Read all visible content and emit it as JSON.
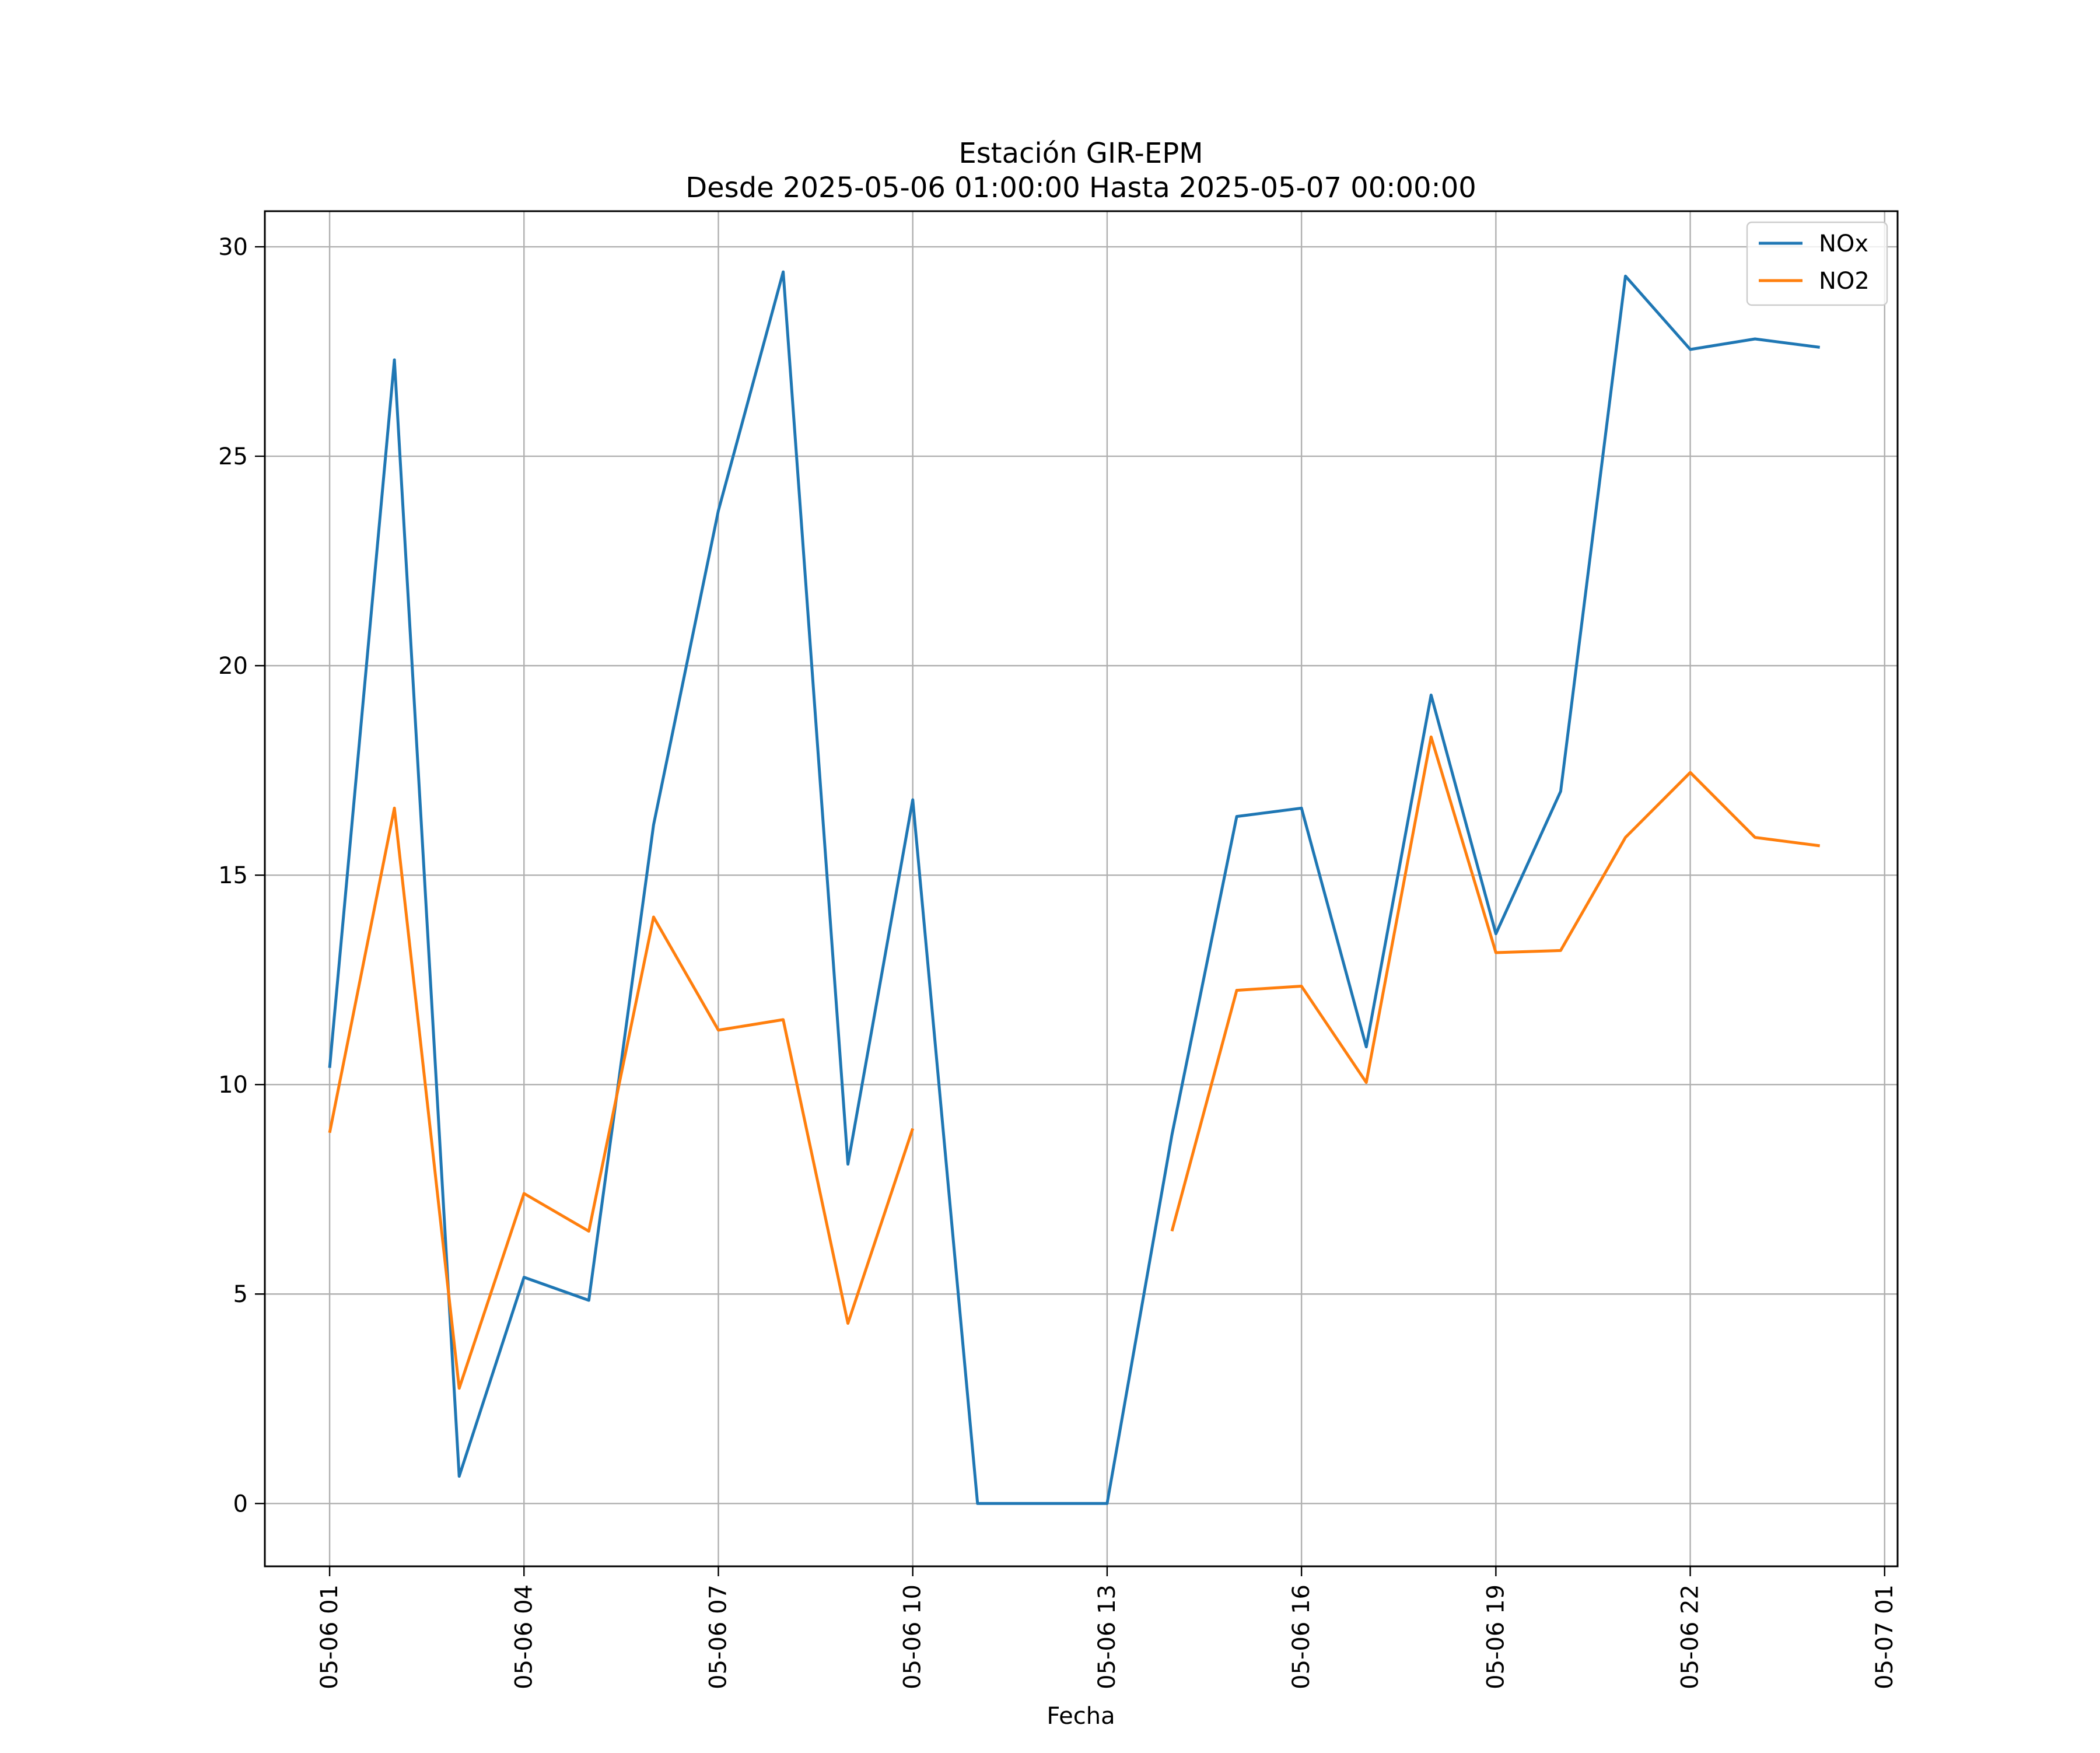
{
  "chart_data": {
    "type": "line",
    "title": "Estación GIR-EPM",
    "subtitle": "Desde 2025-05-06 01:00:00 Hasta 2025-05-07 00:00:00",
    "xlabel": "Fecha",
    "ylabel": "",
    "ylim": [
      -1.5,
      30.85
    ],
    "xlim": [
      "2025-05-06 00:00:00",
      "2025-05-07 01:12:00"
    ],
    "grid": true,
    "legend_position": "top-right",
    "x_ticks": [
      {
        "value": "2025-05-06 01:00:00",
        "label": "05-06 01"
      },
      {
        "value": "2025-05-06 04:00:00",
        "label": "05-06 04"
      },
      {
        "value": "2025-05-06 07:00:00",
        "label": "05-06 07"
      },
      {
        "value": "2025-05-06 10:00:00",
        "label": "05-06 10"
      },
      {
        "value": "2025-05-06 13:00:00",
        "label": "05-06 13"
      },
      {
        "value": "2025-05-06 16:00:00",
        "label": "05-06 16"
      },
      {
        "value": "2025-05-06 19:00:00",
        "label": "05-06 19"
      },
      {
        "value": "2025-05-06 22:00:00",
        "label": "05-06 22"
      },
      {
        "value": "2025-05-07 01:00:00",
        "label": "05-07 01"
      }
    ],
    "y_ticks": [
      {
        "value": 0,
        "label": "0"
      },
      {
        "value": 5,
        "label": "5"
      },
      {
        "value": 10,
        "label": "10"
      },
      {
        "value": 15,
        "label": "15"
      },
      {
        "value": 20,
        "label": "20"
      },
      {
        "value": 25,
        "label": "25"
      },
      {
        "value": 30,
        "label": "30"
      }
    ],
    "x": [
      "2025-05-06 01:00:00",
      "2025-05-06 02:00:00",
      "2025-05-06 03:00:00",
      "2025-05-06 04:00:00",
      "2025-05-06 05:00:00",
      "2025-05-06 06:00:00",
      "2025-05-06 07:00:00",
      "2025-05-06 08:00:00",
      "2025-05-06 09:00:00",
      "2025-05-06 10:00:00",
      "2025-05-06 11:00:00",
      "2025-05-06 12:00:00",
      "2025-05-06 13:00:00",
      "2025-05-06 14:00:00",
      "2025-05-06 15:00:00",
      "2025-05-06 16:00:00",
      "2025-05-06 17:00:00",
      "2025-05-06 18:00:00",
      "2025-05-06 19:00:00",
      "2025-05-06 20:00:00",
      "2025-05-06 21:00:00",
      "2025-05-06 22:00:00",
      "2025-05-06 23:00:00",
      "2025-05-07 00:00:00"
    ],
    "series": [
      {
        "name": "NOx",
        "color": "#1f77b4",
        "values": [
          10.4,
          27.3,
          0.65,
          5.4,
          4.85,
          16.2,
          23.7,
          29.4,
          8.1,
          16.8,
          0.0,
          0.0,
          0.0,
          8.8,
          16.4,
          16.6,
          10.9,
          19.3,
          13.6,
          17.0,
          29.3,
          27.55,
          27.8,
          27.6
        ]
      },
      {
        "name": "NO2",
        "color": "#ff7f0e",
        "values": [
          8.85,
          16.6,
          2.75,
          7.4,
          6.5,
          14.0,
          11.3,
          11.55,
          4.3,
          8.95,
          null,
          null,
          null,
          6.5,
          12.25,
          12.35,
          10.05,
          18.3,
          13.15,
          13.2,
          15.9,
          17.45,
          15.9,
          15.7
        ]
      }
    ]
  }
}
